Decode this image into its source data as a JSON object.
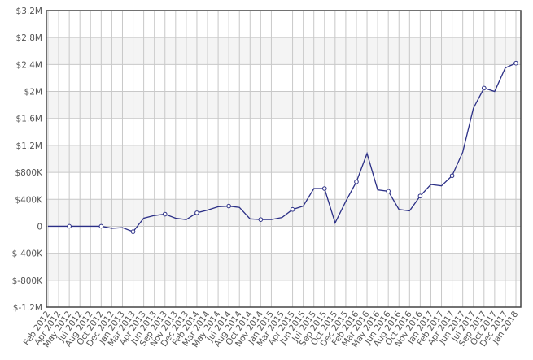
{
  "chart_data": {
    "type": "line",
    "categories": [
      "Feb 2012",
      "Apr 2012",
      "May 2012",
      "Jul 2012",
      "Aug 2012",
      "Oct 2012",
      "Dec 2012",
      "Jan 2013",
      "Mar 2013",
      "Apr 2013",
      "Jun 2013",
      "Sep 2013",
      "Nov 2013",
      "Dec 2013",
      "Feb 2014",
      "Mar 2014",
      "May 2014",
      "Jul 2014",
      "Aug 2014",
      "Oct 2014",
      "Nov 2014",
      "Jan 2015",
      "Mar 2015",
      "Apr 2015",
      "Jun 2015",
      "Jul 2015",
      "Sep 2015",
      "Oct 2015",
      "Dec 2015",
      "Feb 2016",
      "Mar 2016",
      "May 2016",
      "Jun 2016",
      "Aug 2016",
      "Oct 2016",
      "Nov 2016",
      "Jan 2017",
      "Feb 2017",
      "Apr 2017",
      "Jun 2017",
      "Jul 2017",
      "Sep 2017",
      "Oct 2017",
      "Dec 2017",
      "Jan 2018"
    ],
    "series": [
      {
        "color": "#2b2f86",
        "values": [
          0,
          0,
          0,
          0,
          0,
          0,
          -30000,
          -20000,
          -80000,
          120000,
          160000,
          180000,
          120000,
          100000,
          200000,
          240000,
          290000,
          300000,
          280000,
          110000,
          100000,
          100000,
          130000,
          250000,
          300000,
          560000,
          560000,
          50000,
          370000,
          660000,
          1080000,
          540000,
          520000,
          250000,
          230000,
          450000,
          620000,
          600000,
          750000,
          1100000,
          1750000,
          2050000,
          2000000,
          2350000,
          2420000
        ]
      }
    ],
    "ylim": [
      -1200000,
      3200000
    ],
    "yticks": [
      {
        "value": -1200000,
        "label": "$-1.2M"
      },
      {
        "value": -800000,
        "label": "$-800K"
      },
      {
        "value": -400000,
        "label": "$-400K"
      },
      0,
      {
        "value": 400000,
        "label": "$400K"
      },
      {
        "value": 800000,
        "label": "$800K"
      },
      {
        "value": 1200000,
        "label": "$1.2M"
      },
      {
        "value": 1600000,
        "label": "$1.6M"
      },
      {
        "value": 2000000,
        "label": "$2M"
      },
      {
        "value": 2400000,
        "label": "$2.4M"
      },
      {
        "value": 2800000,
        "label": "$2.8M"
      },
      {
        "value": 3200000,
        "label": "$3.2M"
      }
    ],
    "grid": true
  }
}
